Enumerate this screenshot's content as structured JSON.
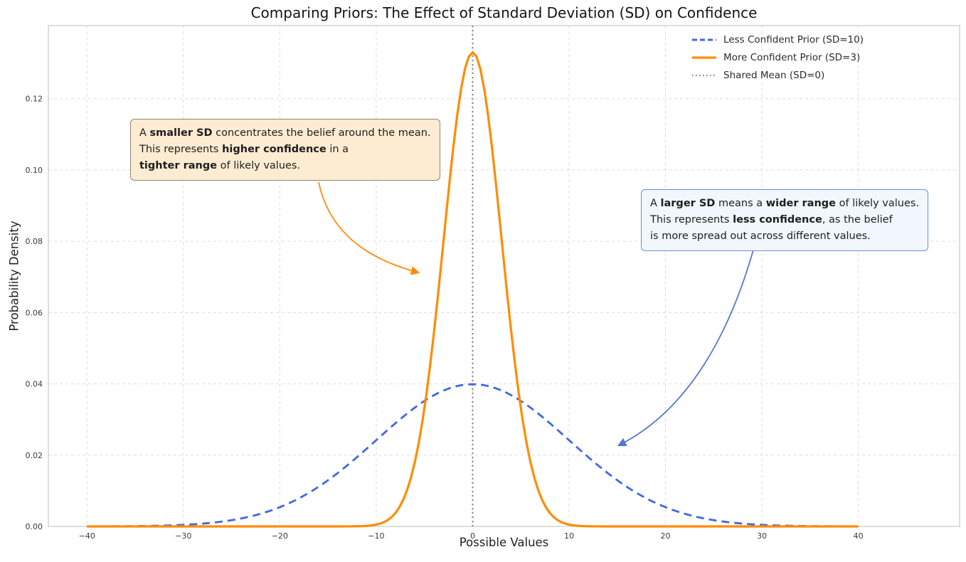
{
  "title": "Comparing Priors: The Effect of Standard Deviation (SD) on Confidence",
  "chart_data": {
    "type": "line",
    "title": "Comparing Priors: The Effect of Standard Deviation (SD) on Confidence",
    "xlabel": "Possible Values",
    "ylabel": "Probability Density",
    "xlim": [
      -44,
      50.5
    ],
    "ylim": [
      0,
      0.1405
    ],
    "grid": true,
    "legend_position": "upper right",
    "curve_x_range": [
      -40,
      40
    ],
    "x_ticks": [
      {
        "value": -40,
        "label": "−40"
      },
      {
        "value": -30,
        "label": "−30"
      },
      {
        "value": -20,
        "label": "−20"
      },
      {
        "value": -10,
        "label": "−10"
      },
      {
        "value": 0,
        "label": "0"
      },
      {
        "value": 10,
        "label": "10"
      },
      {
        "value": 20,
        "label": "20"
      },
      {
        "value": 30,
        "label": "30"
      },
      {
        "value": 40,
        "label": "40"
      }
    ],
    "y_ticks": [
      {
        "value": 0.0,
        "label": "0.00"
      },
      {
        "value": 0.02,
        "label": "0.02"
      },
      {
        "value": 0.04,
        "label": "0.04"
      },
      {
        "value": 0.06,
        "label": "0.06"
      },
      {
        "value": 0.08,
        "label": "0.08"
      },
      {
        "value": 0.1,
        "label": "0.10"
      },
      {
        "value": 0.12,
        "label": "0.12"
      }
    ],
    "series": [
      {
        "name": "Less Confident Prior (SD=10)",
        "distribution": "normal",
        "mean": 0,
        "sd": 10,
        "peak_density": 0.0399,
        "color": "#4169e1",
        "line_style": "dashed",
        "line_width": 2.8
      },
      {
        "name": "More Confident Prior (SD=3)",
        "distribution": "normal",
        "mean": 0,
        "sd": 3,
        "peak_density": 0.133,
        "color": "#ff8c00",
        "line_style": "solid",
        "line_width": 3.2
      }
    ],
    "vline": {
      "name": "Shared Mean (SD=0)",
      "x": 0,
      "color": "#808080",
      "line_style": "dotted",
      "line_width": 2
    }
  },
  "annotations": [
    {
      "id": "smaller-sd",
      "box_color": "#fdecd2",
      "border_color": "#90866f",
      "arrow_color": "#ff8c00",
      "lines": [
        [
          {
            "t": "A ",
            "b": false
          },
          {
            "t": "smaller SD",
            "b": true
          },
          {
            "t": " concentrates the belief around the mean.",
            "b": false
          }
        ],
        [
          {
            "t": "This represents ",
            "b": false
          },
          {
            "t": "higher confidence",
            "b": true
          },
          {
            "t": " in a",
            "b": false
          }
        ],
        [
          {
            "t": "tighter range",
            "b": true
          },
          {
            "t": " of likely values.",
            "b": false
          }
        ]
      ]
    },
    {
      "id": "larger-sd",
      "box_color": "#f1f7fd",
      "border_color": "#6b8ed6",
      "arrow_color": "#5577cc",
      "lines": [
        [
          {
            "t": "A ",
            "b": false
          },
          {
            "t": "larger SD",
            "b": true
          },
          {
            "t": " means a ",
            "b": false
          },
          {
            "t": "wider range",
            "b": true
          },
          {
            "t": " of likely values.",
            "b": false
          }
        ],
        [
          {
            "t": "This represents ",
            "b": false
          },
          {
            "t": "less confidence",
            "b": true
          },
          {
            "t": ", as the belief",
            "b": false
          }
        ],
        [
          {
            "t": "is more spread out across different values.",
            "b": false
          }
        ]
      ]
    }
  ]
}
